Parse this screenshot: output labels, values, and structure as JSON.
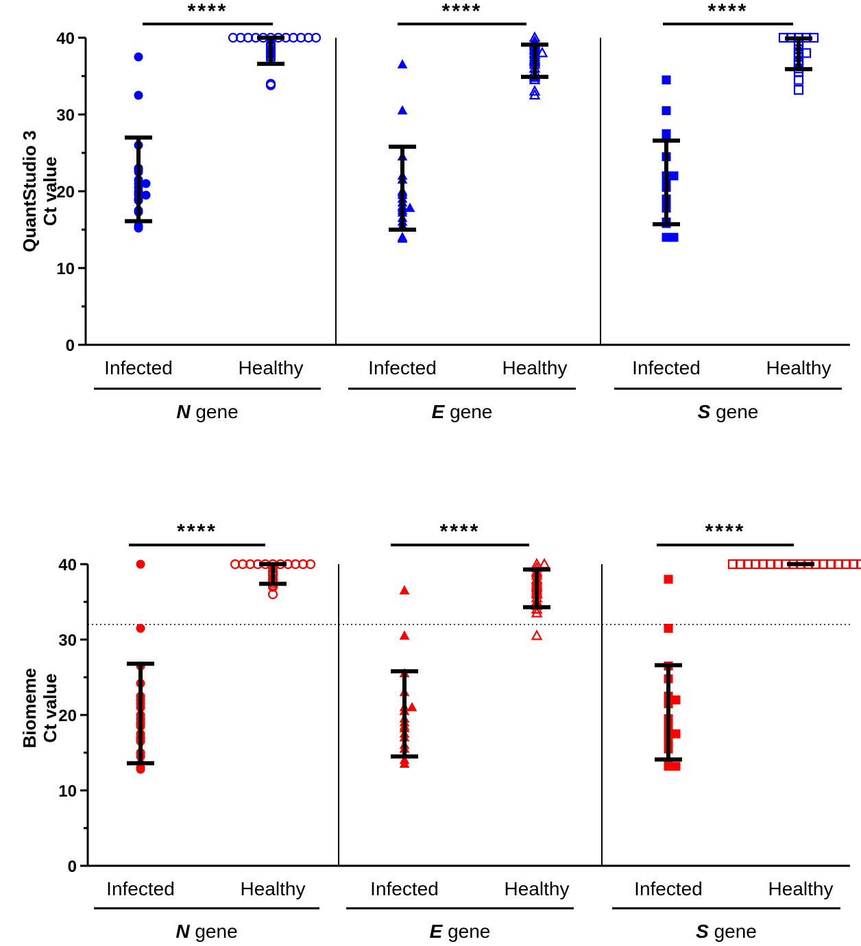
{
  "chart_data": [
    {
      "type": "scatter",
      "panel": "top",
      "ylabel_lines": [
        "QuantStudio 3",
        "Ct value"
      ],
      "ylim": [
        0,
        40
      ],
      "yticks": [
        0,
        10,
        20,
        30,
        40
      ],
      "color": "#0000ff",
      "reference_line": null,
      "groups": [
        {
          "gene_letter": "N",
          "gene_suffix": " gene",
          "marker": "circle",
          "significance": "****",
          "infected": {
            "label": "Infected",
            "mean": 21.5,
            "sd_low": 16.1,
            "sd_high": 27.0,
            "values": [
              37.5,
              32.5,
              26.0,
              23.0,
              22.8,
              22.5,
              21.5,
              21.0,
              21.0,
              20.5,
              20.0,
              19.8,
              19.5,
              19.5,
              19.0,
              18.9,
              18.8,
              17.5,
              17.3,
              15.5,
              15.3,
              15.2
            ]
          },
          "healthy": {
            "label": "Healthy",
            "mean": 38.3,
            "sd_low": 36.6,
            "sd_high": 40.0,
            "values": [
              40,
              40,
              40,
              40,
              40,
              40,
              40,
              40,
              40,
              40,
              40,
              40,
              39.2,
              39.0,
              38.8,
              38.5,
              38.3,
              38.0,
              37.8,
              37.5,
              37.2,
              34.0,
              33.8
            ]
          }
        },
        {
          "gene_letter": "E",
          "gene_suffix": " gene",
          "marker": "triangle",
          "significance": "****",
          "infected": {
            "label": "Infected",
            "mean": 20.4,
            "sd_low": 15.0,
            "sd_high": 25.8,
            "values": [
              36.5,
              30.5,
              24.5,
              22.0,
              21.5,
              20.0,
              19.8,
              19.5,
              19.0,
              18.5,
              18.0,
              17.8,
              17.8,
              17.5,
              17.2,
              16.5,
              16.0,
              15.5,
              14.0,
              13.8
            ]
          },
          "healthy": {
            "label": "Healthy",
            "mean": 37.0,
            "sd_low": 34.9,
            "sd_high": 39.1,
            "values": [
              40,
              39.5,
              39.2,
              39.0,
              38.8,
              38.5,
              38.3,
              38.0,
              38.0,
              37.8,
              37.5,
              37.2,
              37.0,
              36.8,
              36.5,
              36.0,
              35.5,
              35.0,
              34.8,
              34.5,
              33.0,
              32.5
            ]
          }
        },
        {
          "gene_letter": "S",
          "gene_suffix": " gene",
          "marker": "square",
          "significance": "****",
          "infected": {
            "label": "Infected",
            "mean": 21.1,
            "sd_low": 15.7,
            "sd_high": 26.6,
            "values": [
              34.5,
              30.5,
              27.5,
              27.0,
              24.5,
              22.0,
              22.0,
              21.5,
              21.0,
              20.5,
              19.0,
              18.8,
              18.5,
              18.0,
              17.8,
              16.0,
              15.8,
              14.0,
              14.0
            ]
          },
          "healthy": {
            "label": "Healthy",
            "mean": 37.9,
            "sd_low": 35.9,
            "sd_high": 39.9,
            "values": [
              40,
              40,
              40,
              40,
              40,
              39.5,
              39.2,
              38.5,
              38.0,
              38.0,
              37.8,
              37.5,
              37.0,
              36.8,
              36.5,
              36.0,
              35.5,
              34.5,
              33.2
            ]
          }
        }
      ]
    },
    {
      "type": "scatter",
      "panel": "bottom",
      "ylabel_lines": [
        "Biomeme",
        "Ct value"
      ],
      "ylim": [
        0,
        40
      ],
      "yticks": [
        0,
        10,
        20,
        30,
        40
      ],
      "color": "#ff0000",
      "reference_line": 32,
      "groups": [
        {
          "gene_letter": "N",
          "gene_suffix": " gene",
          "marker": "circle",
          "significance": "****",
          "infected": {
            "label": "Infected",
            "mean": 20.2,
            "sd_low": 13.6,
            "sd_high": 26.8,
            "values": [
              40.0,
              31.5,
              26.5,
              24.2,
              22.5,
              22.0,
              21.5,
              21.0,
              20.0,
              19.5,
              19.0,
              18.8,
              18.5,
              17.5,
              17.0,
              16.8,
              16.5,
              15.0,
              14.5,
              13.5,
              13.0,
              12.8
            ]
          },
          "healthy": {
            "label": "Healthy",
            "mean": 38.7,
            "sd_low": 37.4,
            "sd_high": 40.0,
            "values": [
              40,
              40,
              40,
              40,
              40,
              40,
              40,
              40,
              40,
              40,
              40,
              39.5,
              39.0,
              38.8,
              38.5,
              38.0,
              37.8,
              37.5,
              37.2,
              37.0,
              36.0
            ]
          }
        },
        {
          "gene_letter": "E",
          "gene_suffix": " gene",
          "marker": "triangle",
          "significance": "****",
          "infected": {
            "label": "Infected",
            "mean": 20.1,
            "sd_low": 14.5,
            "sd_high": 25.8,
            "values": [
              36.5,
              30.5,
              25.5,
              23.0,
              21.0,
              21.0,
              20.5,
              19.5,
              19.0,
              18.5,
              18.2,
              17.5,
              17.0,
              16.0,
              15.5,
              14.0,
              13.5
            ]
          },
          "healthy": {
            "label": "Healthy",
            "mean": 36.8,
            "sd_low": 34.3,
            "sd_high": 39.3,
            "values": [
              40,
              40,
              39.5,
              39.0,
              38.8,
              38.5,
              38.0,
              37.8,
              37.5,
              37.2,
              37.0,
              36.8,
              36.5,
              36.2,
              36.0,
              35.5,
              35.0,
              34.8,
              34.5,
              34.0,
              33.5,
              30.5
            ]
          }
        },
        {
          "gene_letter": "S",
          "gene_suffix": " gene",
          "marker": "square",
          "significance": "****",
          "infected": {
            "label": "Infected",
            "mean": 20.3,
            "sd_low": 14.1,
            "sd_high": 26.6,
            "values": [
              38.0,
              31.5,
              26.5,
              24.8,
              22.5,
              22.0,
              22.0,
              21.5,
              19.5,
              18.5,
              18.0,
              17.5,
              17.5,
              17.0,
              16.5,
              15.5,
              13.5,
              13.2,
              13.2
            ]
          },
          "healthy": {
            "label": "Healthy",
            "mean": 40.0,
            "sd_low": 40.0,
            "sd_high": 40.0,
            "values": [
              40,
              40,
              40,
              40,
              40,
              40,
              40,
              40,
              40,
              40,
              40,
              40,
              40,
              40,
              40,
              40,
              40,
              40,
              40,
              40
            ]
          }
        }
      ]
    }
  ]
}
